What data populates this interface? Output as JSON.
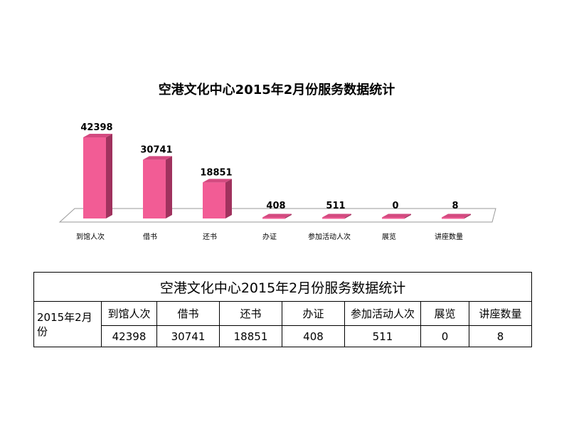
{
  "chart_data": {
    "type": "bar",
    "title": "空港文化中心2015年2月份服务数据统计",
    "categories": [
      "到馆人次",
      "借书",
      "还书",
      "办证",
      "参加活动人次",
      "展览",
      "讲座数量"
    ],
    "values": [
      42398,
      30741,
      18851,
      408,
      511,
      0,
      8
    ],
    "data_labels": [
      "42398",
      "30741",
      "18851",
      "408",
      "511",
      "0",
      "8"
    ],
    "xlabel": "",
    "ylabel": "",
    "ylim": [
      0,
      45000
    ],
    "grid": false,
    "legend": "none",
    "style": "3d-column"
  },
  "colors": {
    "bar_front": "#f25c95",
    "bar_side": "#a0325e",
    "bar_top": "#d34a80",
    "floor": "#ffffff",
    "floor_edge": "#999999"
  },
  "table": {
    "title": "空港文化中心2015年2月份服务数据统计",
    "period": "2015年2月份",
    "headers": [
      "到馆人次",
      "借书",
      "还书",
      "办证",
      "参加活动人次",
      "展览",
      "讲座数量"
    ],
    "values": [
      "42398",
      "30741",
      "18851",
      "408",
      "511",
      "0",
      "8"
    ]
  }
}
